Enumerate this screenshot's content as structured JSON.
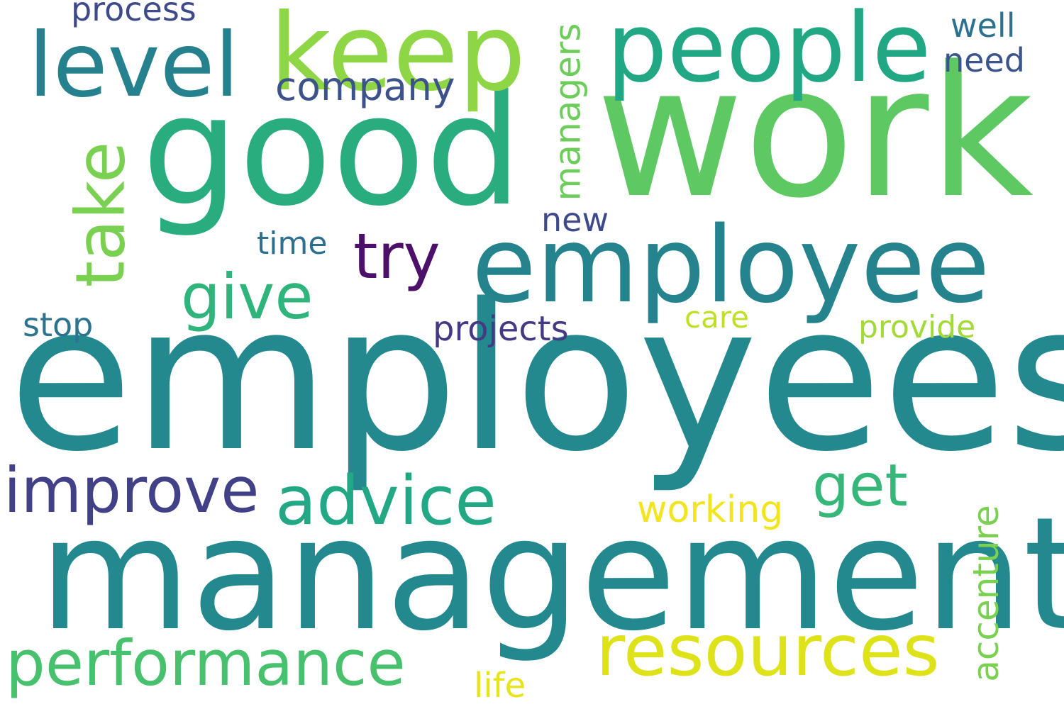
{
  "words": [
    {
      "text": "employees",
      "color": "#23898e"
    },
    {
      "text": "management",
      "color": "#23898e"
    },
    {
      "text": "work",
      "color": "#5ec962"
    },
    {
      "text": "good",
      "color": "#2aad7e"
    },
    {
      "text": "employee",
      "color": "#25838e"
    },
    {
      "text": "keep",
      "color": "#8ed645"
    },
    {
      "text": "people",
      "color": "#22a785"
    },
    {
      "text": "level",
      "color": "#26818e"
    },
    {
      "text": "resources",
      "color": "#dde318"
    },
    {
      "text": "performance",
      "color": "#48c16e"
    },
    {
      "text": "advice",
      "color": "#22a884"
    },
    {
      "text": "improve",
      "color": "#424086"
    },
    {
      "text": "take",
      "color": "#7ad151"
    },
    {
      "text": "give",
      "color": "#2fb47c"
    },
    {
      "text": "try",
      "color": "#4c1068"
    },
    {
      "text": "get",
      "color": "#35b779"
    },
    {
      "text": "company",
      "color": "#3b528b"
    },
    {
      "text": "managers",
      "color": "#6ccd5a"
    },
    {
      "text": "accenture",
      "color": "#7ad151"
    },
    {
      "text": "working",
      "color": "#f2e51d"
    },
    {
      "text": "projects",
      "color": "#443a83"
    },
    {
      "text": "process",
      "color": "#3e4a89"
    },
    {
      "text": "well",
      "color": "#2c728e"
    },
    {
      "text": "need",
      "color": "#3a548c"
    },
    {
      "text": "new",
      "color": "#3e4989"
    },
    {
      "text": "time",
      "color": "#2d708e"
    },
    {
      "text": "stop",
      "color": "#2c738e"
    },
    {
      "text": "care",
      "color": "#c0df25"
    },
    {
      "text": "provide",
      "color": "#a2da37"
    },
    {
      "text": "life",
      "color": "#e7e419"
    }
  ]
}
